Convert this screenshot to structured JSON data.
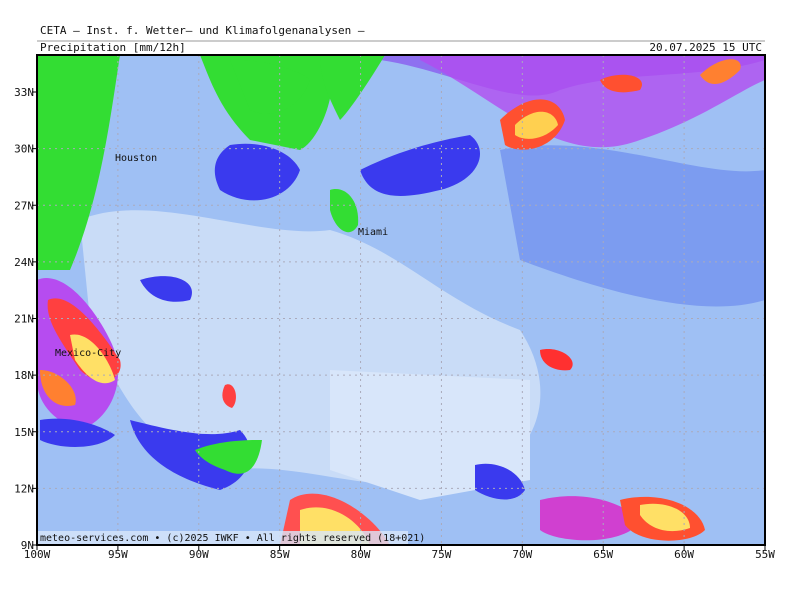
{
  "header": {
    "title": "CETA – Inst. f. Wetter– und Klimafolgenanalysen –",
    "product": "Precipitation [mm/12h]",
    "valid": "20.07.2025 15 UTC"
  },
  "map": {
    "lat_labels": [
      "33N",
      "30N",
      "27N",
      "24N",
      "21N",
      "18N",
      "15N",
      "12N",
      "9N"
    ],
    "lon_labels": [
      "100W",
      "95W",
      "90W",
      "85W",
      "80W",
      "75W",
      "70W",
      "65W",
      "60W",
      "55W"
    ],
    "cities": [
      "Houston",
      "Miami",
      "Mexico-City"
    ],
    "credit": "meteo-services.com • (c)2025 IWKF • All rights reserved (18+021)"
  }
}
